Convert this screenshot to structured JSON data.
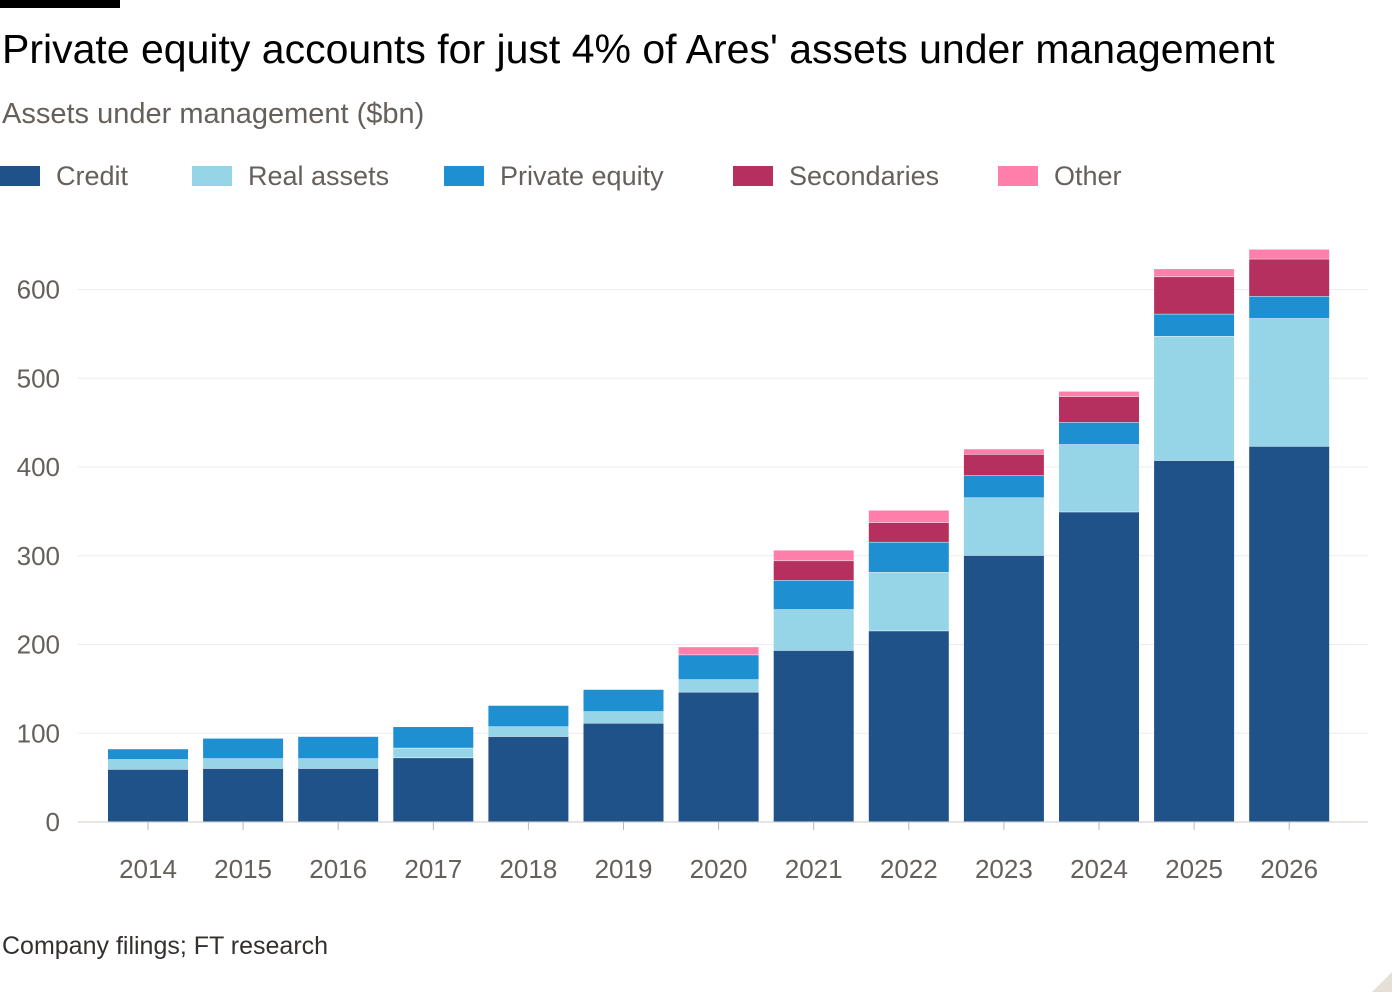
{
  "header": {
    "title": "Private equity accounts for just 4% of Ares' assets under management",
    "subtitle": "Assets under management ($bn)"
  },
  "footer": {
    "source": "Company filings; FT research"
  },
  "chart_data": {
    "type": "bar",
    "stacked": true,
    "title": "Private equity accounts for just 4% of Ares' assets under management",
    "subtitle": "Assets under management ($bn)",
    "xlabel": "",
    "ylabel": "",
    "ylim": [
      0,
      650
    ],
    "yticks": [
      0,
      100,
      200,
      300,
      400,
      500,
      600
    ],
    "grid": true,
    "legend_position": "top-left",
    "categories": [
      "2014",
      "2015",
      "2016",
      "2017",
      "2018",
      "2019",
      "2020",
      "2021",
      "2022",
      "2023",
      "2024",
      "2025",
      "2026"
    ],
    "series": [
      {
        "name": "Credit",
        "color": "#1f5289",
        "values": [
          59,
          60,
          60,
          72,
          96,
          111,
          146,
          193,
          215,
          300,
          349,
          407,
          423
        ]
      },
      {
        "name": "Real assets",
        "color": "#96d4e7",
        "values": [
          11,
          11,
          11,
          11,
          11,
          13,
          14,
          46,
          66,
          65,
          76,
          140,
          144
        ]
      },
      {
        "name": "Private equity",
        "color": "#1e8fd0",
        "values": [
          12,
          23,
          25,
          24,
          24,
          25,
          28,
          33,
          34,
          25,
          25,
          25,
          25
        ]
      },
      {
        "name": "Secondaries",
        "color": "#b5305e",
        "values": [
          0,
          0,
          0,
          0,
          0,
          0,
          0,
          22,
          22,
          24,
          29,
          42,
          42
        ]
      },
      {
        "name": "Other",
        "color": "#ff7faa",
        "values": [
          0,
          0,
          0,
          0,
          0,
          0,
          9,
          12,
          14,
          6,
          6,
          9,
          11
        ]
      }
    ]
  }
}
